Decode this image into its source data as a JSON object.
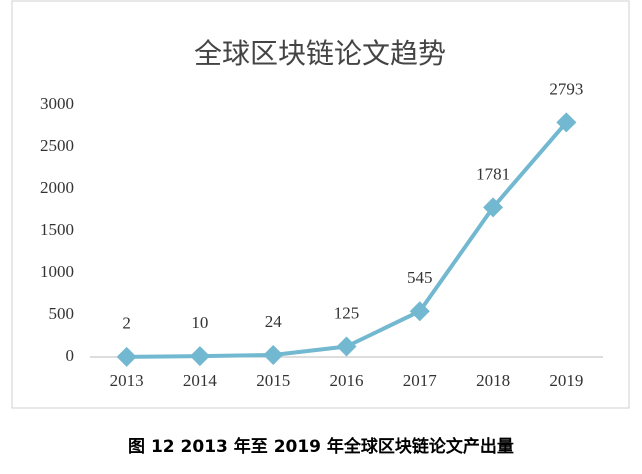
{
  "chart_data": {
    "type": "line",
    "title": "全球区块链论文趋势",
    "categories": [
      "2013",
      "2014",
      "2015",
      "2016",
      "2017",
      "2018",
      "2019"
    ],
    "values": [
      2,
      10,
      24,
      125,
      545,
      1781,
      2793
    ],
    "color": "#72b8d0",
    "ylim": [
      0,
      3000
    ],
    "yticks": [
      0,
      500,
      1000,
      1500,
      2000,
      2500,
      3000
    ],
    "grid": false
  },
  "caption": "图 12 2013 年至 2019 年全球区块链论文产出量"
}
